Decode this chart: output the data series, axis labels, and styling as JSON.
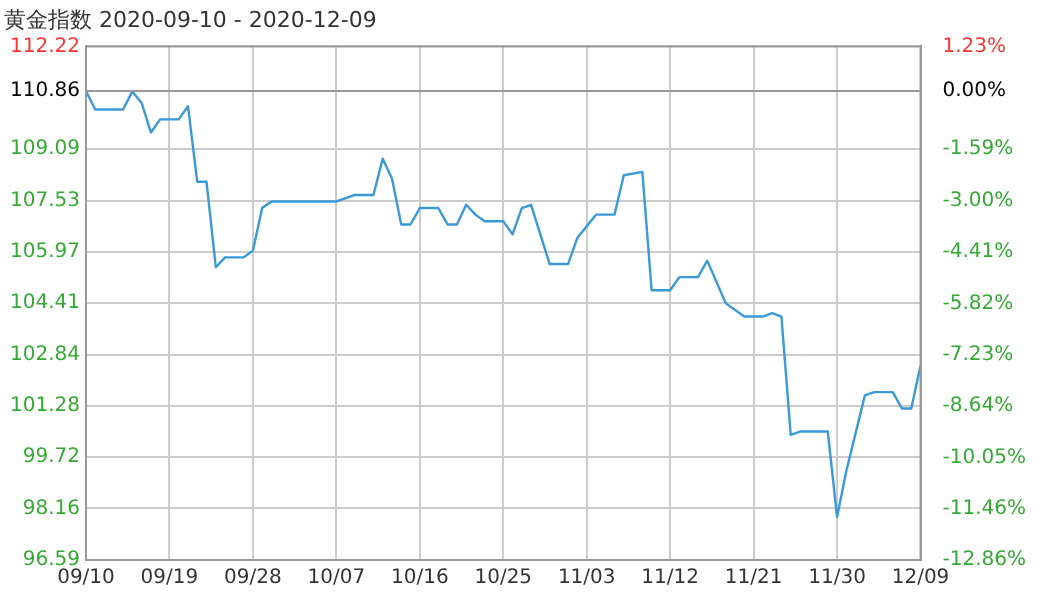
{
  "chart_data": {
    "type": "line",
    "title": "黄金指数 2020-09-10 - 2020-12-09",
    "x": [
      "2020-09-10",
      "2020-09-11",
      "2020-09-14",
      "2020-09-15",
      "2020-09-16",
      "2020-09-17",
      "2020-09-18",
      "2020-09-20",
      "2020-09-21",
      "2020-09-22",
      "2020-09-23",
      "2020-09-24",
      "2020-09-25",
      "2020-09-27",
      "2020-09-28",
      "2020-09-29",
      "2020-09-30",
      "2020-10-07",
      "2020-10-09",
      "2020-10-11",
      "2020-10-12",
      "2020-10-13",
      "2020-10-14",
      "2020-10-15",
      "2020-10-16",
      "2020-10-18",
      "2020-10-19",
      "2020-10-20",
      "2020-10-21",
      "2020-10-22",
      "2020-10-23",
      "2020-10-25",
      "2020-10-26",
      "2020-10-27",
      "2020-10-28",
      "2020-10-30",
      "2020-11-01",
      "2020-11-02",
      "2020-11-04",
      "2020-11-06",
      "2020-11-07",
      "2020-11-09",
      "2020-11-10",
      "2020-11-12",
      "2020-11-13",
      "2020-11-15",
      "2020-11-16",
      "2020-11-18",
      "2020-11-20",
      "2020-11-22",
      "2020-11-23",
      "2020-11-24",
      "2020-11-25",
      "2020-11-26",
      "2020-11-29",
      "2020-11-30",
      "2020-12-01",
      "2020-12-03",
      "2020-12-04",
      "2020-12-06",
      "2020-12-07",
      "2020-12-08",
      "2020-12-09"
    ],
    "series": [
      {
        "color": "#3a9ad9",
        "values": [
          110.86,
          110.3,
          110.3,
          110.85,
          110.5,
          109.6,
          110.0,
          110.0,
          110.4,
          108.1,
          108.1,
          105.5,
          105.8,
          105.8,
          106.0,
          107.3,
          107.5,
          107.5,
          107.7,
          107.7,
          108.8,
          108.2,
          106.8,
          106.8,
          107.3,
          107.3,
          106.8,
          106.8,
          107.4,
          107.1,
          106.9,
          106.9,
          106.5,
          107.3,
          107.4,
          105.6,
          105.6,
          106.4,
          107.1,
          107.1,
          108.3,
          108.4,
          104.8,
          104.8,
          105.2,
          105.2,
          105.7,
          104.4,
          104.0,
          104.0,
          104.1,
          104.0,
          100.4,
          100.5,
          100.5,
          97.9,
          99.3,
          101.6,
          101.7,
          101.7,
          101.2,
          101.2,
          102.5
        ]
      }
    ],
    "xlim": [
      "2020-09-10",
      "2020-12-09"
    ],
    "xticks": [
      {
        "value": "2020-09-10",
        "label": "09/10"
      },
      {
        "value": "2020-09-19",
        "label": "09/19"
      },
      {
        "value": "2020-09-28",
        "label": "09/28"
      },
      {
        "value": "2020-10-07",
        "label": "10/07"
      },
      {
        "value": "2020-10-16",
        "label": "10/16"
      },
      {
        "value": "2020-10-25",
        "label": "10/25"
      },
      {
        "value": "2020-11-03",
        "label": "11/03"
      },
      {
        "value": "2020-11-12",
        "label": "11/12"
      },
      {
        "value": "2020-11-21",
        "label": "11/21"
      },
      {
        "value": "2020-11-30",
        "label": "11/30"
      },
      {
        "value": "2020-12-09",
        "label": "12/09"
      }
    ],
    "ylim": [
      96.59,
      112.22
    ],
    "yticks": [
      96.59,
      98.16,
      99.72,
      101.28,
      102.84,
      104.41,
      105.97,
      107.53,
      109.09,
      110.86,
      112.22
    ],
    "y2lim": [
      -12.86,
      1.23
    ],
    "y2ticks": [
      {
        "value": -12.86,
        "label": "-12.86%"
      },
      {
        "value": -11.46,
        "label": "-11.46%"
      },
      {
        "value": -10.05,
        "label": "-10.05%"
      },
      {
        "value": -8.64,
        "label": "-8.64%"
      },
      {
        "value": -7.23,
        "label": "-7.23%"
      },
      {
        "value": -5.82,
        "label": "-5.82%"
      },
      {
        "value": -4.41,
        "label": "-4.41%"
      },
      {
        "value": -3.0,
        "label": "-3.00%"
      },
      {
        "value": -1.59,
        "label": "-1.59%"
      },
      {
        "value": 0,
        "label": "0.00%"
      },
      {
        "value": 1.23,
        "label": "1.23%"
      }
    ],
    "ref_lines": [
      {
        "axis": "y",
        "value": 110.86,
        "color": "#999999"
      }
    ],
    "grid": true,
    "legend": false,
    "marker": "none",
    "line_style": "solid"
  }
}
